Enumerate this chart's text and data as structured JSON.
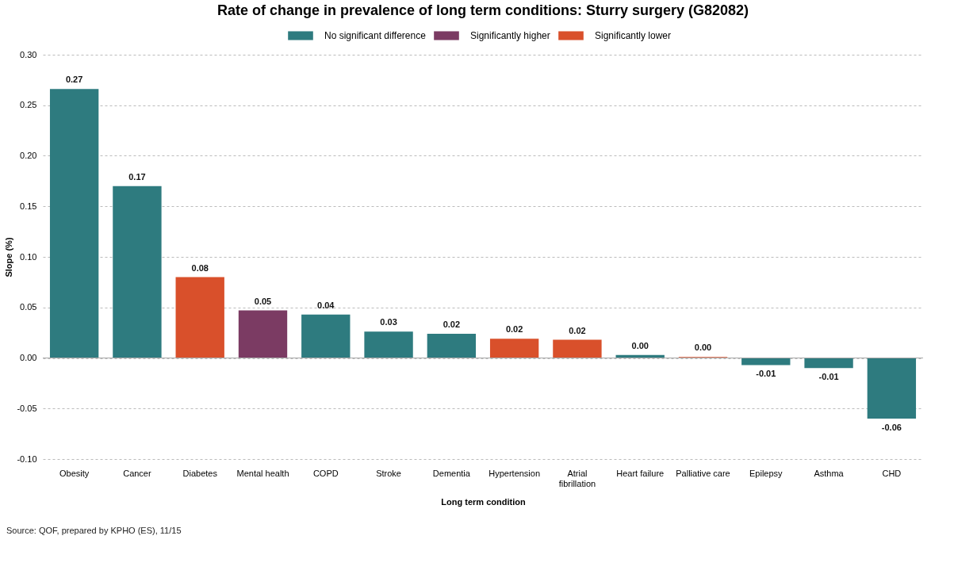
{
  "chart_data": {
    "type": "bar",
    "title": "Rate of change in prevalence of long term conditions: Sturry surgery (G82082)",
    "xlabel": "Long term condition",
    "ylabel": "Slope (%)",
    "categories": [
      "Obesity",
      "Cancer",
      "Diabetes",
      "Mental health",
      "COPD",
      "Stroke",
      "Dementia",
      "Hypertension",
      "Atrial fibrillation",
      "Heart failure",
      "Palliative care",
      "Epilepsy",
      "Asthma",
      "CHD"
    ],
    "series": [
      {
        "name": "No significant difference",
        "color": "#2e7b7f",
        "values": [
          0.266,
          0.17,
          null,
          null,
          0.043,
          0.026,
          0.024,
          null,
          null,
          0.003,
          null,
          -0.007,
          -0.01,
          -0.06
        ],
        "value_labels": [
          "0.27",
          "0.17",
          null,
          null,
          "0.04",
          "0.03",
          "0.02",
          null,
          null,
          "0.00",
          null,
          "-0.01",
          "-0.01",
          "-0.06"
        ]
      },
      {
        "name": "Significantly higher",
        "color": "#7b3b63",
        "values": [
          null,
          null,
          null,
          0.047,
          null,
          null,
          null,
          null,
          null,
          null,
          null,
          null,
          null,
          null
        ],
        "value_labels": [
          null,
          null,
          null,
          "0.05",
          null,
          null,
          null,
          null,
          null,
          null,
          null,
          null,
          null,
          null
        ]
      },
      {
        "name": "Significantly lower",
        "color": "#d9502b",
        "values": [
          null,
          null,
          0.08,
          null,
          null,
          null,
          null,
          0.019,
          0.018,
          null,
          0.001,
          null,
          null,
          null
        ],
        "value_labels": [
          null,
          null,
          "0.08",
          null,
          null,
          null,
          null,
          "0.02",
          "0.02",
          null,
          "0.00",
          null,
          null,
          null
        ]
      }
    ],
    "ylim": [
      -0.1,
      0.3
    ],
    "yticks": [
      {
        "value": -0.1,
        "label": "-0.10"
      },
      {
        "value": -0.05,
        "label": "-0.05"
      },
      {
        "value": 0,
        "label": "0.00"
      },
      {
        "value": 0.05,
        "label": "0.05"
      },
      {
        "value": 0.1,
        "label": "0.10"
      },
      {
        "value": 0.15,
        "label": "0.15"
      },
      {
        "value": 0.2,
        "label": "0.20"
      },
      {
        "value": 0.25,
        "label": "0.25"
      },
      {
        "value": 0.3,
        "label": "0.30"
      }
    ],
    "grid": "y",
    "legend": "top",
    "annotations": [
      "Source: QOF, prepared by KPHO (ES), 11/15"
    ]
  }
}
